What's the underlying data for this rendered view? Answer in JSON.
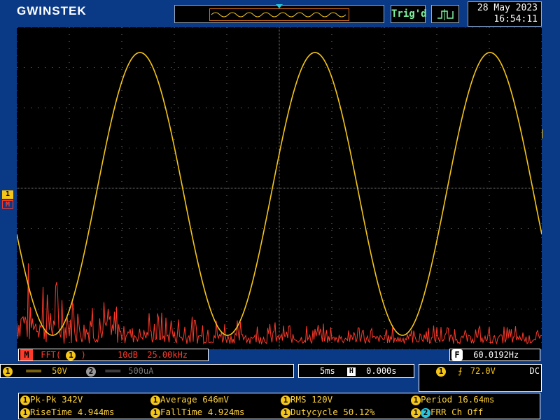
{
  "header": {
    "brand": "GWINSTEK",
    "trigger_status": "Trig'd",
    "date": "28 May 2023",
    "time": "16:54:11"
  },
  "left_markers": {
    "ch1": "1",
    "math": "M"
  },
  "math_bar": {
    "badge": "M",
    "function": "FFT(",
    "function_close": ")",
    "scale": "10dB",
    "center": "25.00kHz"
  },
  "frequency_counter": {
    "badge": "F",
    "value": "60.0192Hz"
  },
  "status": {
    "ch1_coupling": "═══",
    "ch1_scale": "50V",
    "ch2_coupling": "═══",
    "ch2_scale": "500uA",
    "timebase": "5ms",
    "position": "0.000s",
    "trigger_level": "72.0V",
    "trigger_coupling": "DC"
  },
  "measurements": [
    {
      "label": "Pk-Pk",
      "value": "342V"
    },
    {
      "label": "Average",
      "value": "646mV"
    },
    {
      "label": "RMS",
      "value": "120V"
    },
    {
      "label": "Period",
      "value": "16.64ms"
    },
    {
      "label": "RiseTime",
      "value": "4.944ms"
    },
    {
      "label": "FallTime",
      "value": "4.924ms"
    },
    {
      "label": "Dutycycle",
      "value": "50.12%"
    },
    {
      "label": "FRR Ch",
      "value": "Off"
    }
  ],
  "colors": {
    "ch1": "#f5c518",
    "math": "#ff3a2a",
    "background": "#0a3a86",
    "grid": "#7a7a7a"
  }
}
